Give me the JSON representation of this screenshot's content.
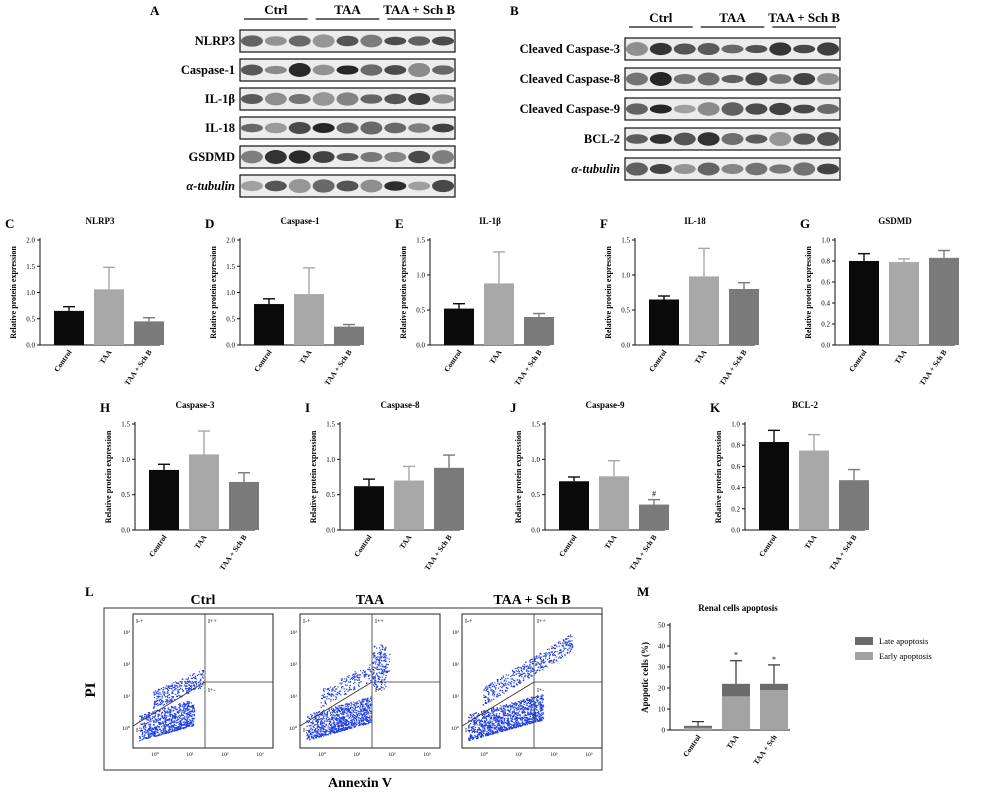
{
  "colors": {
    "ctrl": "#0a0a0a",
    "taa": "#a8a8a8",
    "schb": "#7a7a7a",
    "dots": "#1f3fe0"
  },
  "blotA": {
    "letter": "A",
    "groups": [
      "Ctrl",
      "TAA",
      "TAA + Sch B"
    ],
    "rows": [
      "NLRP3",
      "Caspase-1",
      "IL-1β",
      "IL-18",
      "GSDMD",
      "α-tubulin"
    ]
  },
  "blotB": {
    "letter": "B",
    "groups": [
      "Ctrl",
      "TAA",
      "TAA + Sch B"
    ],
    "rows": [
      "Cleaved Caspase-3",
      "Cleaved Caspase-8",
      "Cleaved Caspase-9",
      "BCL-2",
      "α-tubulin"
    ]
  },
  "ylabel": "Relative protein expression",
  "categories": [
    "Control",
    "TAA",
    "TAA + Sch B"
  ],
  "chart_data": [
    {
      "letter": "C",
      "title": "NLRP3",
      "type": "bar",
      "categories": [
        "Control",
        "TAA",
        "TAA + Sch B"
      ],
      "values": [
        0.65,
        1.06,
        0.45
      ],
      "errors": [
        0.08,
        0.42,
        0.07
      ],
      "ylim": [
        0,
        2.0
      ],
      "ticks": [
        "0.0",
        "0.5",
        "1.0",
        "1.5",
        "2.0"
      ],
      "annotations": [
        "",
        "",
        ""
      ]
    },
    {
      "letter": "D",
      "title": "Caspase-1",
      "type": "bar",
      "categories": [
        "Control",
        "TAA",
        "TAA + Sch B"
      ],
      "values": [
        0.78,
        0.97,
        0.35
      ],
      "errors": [
        0.1,
        0.5,
        0.04
      ],
      "ylim": [
        0,
        2.0
      ],
      "ticks": [
        "0.0",
        "0.5",
        "1.0",
        "1.5",
        "2.0"
      ],
      "annotations": [
        "",
        "",
        ""
      ]
    },
    {
      "letter": "E",
      "title": "IL-1β",
      "type": "bar",
      "categories": [
        "Control",
        "TAA",
        "TAA + Sch B"
      ],
      "values": [
        0.52,
        0.88,
        0.4
      ],
      "errors": [
        0.07,
        0.45,
        0.05
      ],
      "ylim": [
        0,
        1.5
      ],
      "ticks": [
        "0.0",
        "0.5",
        "1.0",
        "1.5"
      ],
      "annotations": [
        "",
        "",
        ""
      ]
    },
    {
      "letter": "F",
      "title": "IL-18",
      "type": "bar",
      "categories": [
        "Control",
        "TAA",
        "TAA + Sch B"
      ],
      "values": [
        0.65,
        0.98,
        0.8
      ],
      "errors": [
        0.05,
        0.4,
        0.09
      ],
      "ylim": [
        0,
        1.5
      ],
      "ticks": [
        "0.0",
        "0.5",
        "1.0",
        "1.5"
      ],
      "annotations": [
        "",
        "",
        ""
      ]
    },
    {
      "letter": "G",
      "title": "GSDMD",
      "type": "bar",
      "categories": [
        "Control",
        "TAA",
        "TAA + Sch B"
      ],
      "values": [
        0.8,
        0.79,
        0.83
      ],
      "errors": [
        0.07,
        0.03,
        0.07
      ],
      "ylim": [
        0,
        1.0
      ],
      "ticks": [
        "0.0",
        "0.2",
        "0.4",
        "0.6",
        "0.8",
        "1.0"
      ],
      "annotations": [
        "",
        "",
        ""
      ]
    },
    {
      "letter": "H",
      "title": "Caspase-3",
      "type": "bar",
      "categories": [
        "Control",
        "TAA",
        "TAA + Sch B"
      ],
      "values": [
        0.85,
        1.07,
        0.68
      ],
      "errors": [
        0.08,
        0.33,
        0.13
      ],
      "ylim": [
        0,
        1.5
      ],
      "ticks": [
        "0.0",
        "0.5",
        "1.0",
        "1.5"
      ],
      "annotations": [
        "",
        "",
        ""
      ]
    },
    {
      "letter": "I",
      "title": "Caspase-8",
      "type": "bar",
      "categories": [
        "Control",
        "TAA",
        "TAA + Sch B"
      ],
      "values": [
        0.62,
        0.7,
        0.88
      ],
      "errors": [
        0.1,
        0.2,
        0.18
      ],
      "ylim": [
        0,
        1.5
      ],
      "ticks": [
        "0.0",
        "0.5",
        "1.0",
        "1.5"
      ],
      "annotations": [
        "",
        "",
        ""
      ]
    },
    {
      "letter": "J",
      "title": "Caspase-9",
      "type": "bar",
      "categories": [
        "Control",
        "TAA",
        "TAA + Sch B"
      ],
      "values": [
        0.69,
        0.76,
        0.36
      ],
      "errors": [
        0.06,
        0.22,
        0.07
      ],
      "ylim": [
        0,
        1.5
      ],
      "ticks": [
        "0.0",
        "0.5",
        "1.0",
        "1.5"
      ],
      "annotations": [
        "",
        "",
        "#"
      ]
    },
    {
      "letter": "K",
      "title": "BCL-2",
      "type": "bar",
      "categories": [
        "Control",
        "TAA",
        "TAA + Sch B"
      ],
      "values": [
        0.83,
        0.75,
        0.47
      ],
      "errors": [
        0.11,
        0.15,
        0.1
      ],
      "ylim": [
        0,
        1.0
      ],
      "ticks": [
        "0.0",
        "0.2",
        "0.4",
        "0.6",
        "0.8",
        "1.0"
      ],
      "annotations": [
        "",
        "",
        ""
      ]
    }
  ],
  "flow": {
    "letter": "L",
    "titles": [
      "Ctrl",
      "TAA",
      "TAA + Sch B"
    ],
    "xlabel": "Annexin V",
    "ylabel": "PI",
    "quadrants": [
      "I-+",
      "I++",
      "I--",
      "I+-"
    ],
    "yticks": [
      "10⁰",
      "10¹",
      "10²",
      "10³"
    ],
    "xticks": [
      "10⁰",
      "10¹",
      "10²",
      "10³"
    ]
  },
  "apoptosis": {
    "letter": "M",
    "title": "Renal cells apoptosis",
    "ylabel": "Apopotic cells (%)",
    "categories": [
      "Control",
      "TAA",
      "TAA + Sch"
    ],
    "ticks": [
      "0",
      "10",
      "20",
      "30",
      "40",
      "50"
    ],
    "ylim": [
      0,
      50
    ],
    "legend": [
      "Late apoptosis",
      "Early apoptosis"
    ],
    "early": [
      1,
      16,
      19
    ],
    "late": [
      1,
      6,
      3
    ],
    "errors": [
      2,
      11,
      9
    ],
    "annotations": [
      "",
      "*",
      "*"
    ],
    "colors": {
      "late": "#6b6b6b",
      "early": "#a3a3a3"
    }
  }
}
